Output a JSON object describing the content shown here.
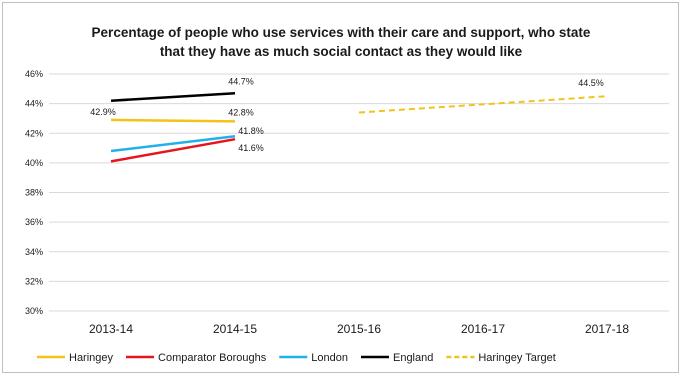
{
  "chart_data": {
    "type": "line",
    "title_lines": [
      "Percentage of people who use services with their care and support, who state",
      "that they have as much social contact as they would like"
    ],
    "xlabel": "",
    "ylabel": "",
    "categories": [
      "2013-14",
      "2014-15",
      "2015-16",
      "2016-17",
      "2017-18"
    ],
    "ylim": [
      30,
      46
    ],
    "yticks": [
      30,
      32,
      34,
      36,
      38,
      40,
      42,
      44,
      46
    ],
    "ytick_labels": [
      "30%",
      "32%",
      "34%",
      "36%",
      "38%",
      "40%",
      "42%",
      "44%",
      "46%"
    ],
    "grid": true,
    "legend_position": "bottom",
    "series": [
      {
        "name": "Haringey",
        "color": "#f2c318",
        "dashed": false,
        "points": [
          [
            0,
            42.9
          ],
          [
            1,
            42.8
          ]
        ],
        "labels": [
          "42.9%",
          "42.8%"
        ]
      },
      {
        "name": "Comparator Boroughs",
        "color": "#e8141b",
        "dashed": false,
        "points": [
          [
            0,
            40.1
          ],
          [
            1,
            41.6
          ]
        ],
        "labels": [
          "",
          "41.6%"
        ]
      },
      {
        "name": "London",
        "color": "#22b1e6",
        "dashed": false,
        "points": [
          [
            0,
            40.8
          ],
          [
            1,
            41.8
          ]
        ],
        "labels": [
          "",
          "41.8%"
        ]
      },
      {
        "name": "England",
        "color": "#000000",
        "dashed": false,
        "points": [
          [
            0,
            44.2
          ],
          [
            1,
            44.7
          ]
        ],
        "labels": [
          "",
          "44.7%"
        ]
      },
      {
        "name": "Haringey Target",
        "color": "#f2c318",
        "dashed": true,
        "points": [
          [
            2,
            43.4
          ],
          [
            4,
            44.5
          ]
        ],
        "labels": [
          "",
          "44.5%"
        ]
      }
    ]
  }
}
